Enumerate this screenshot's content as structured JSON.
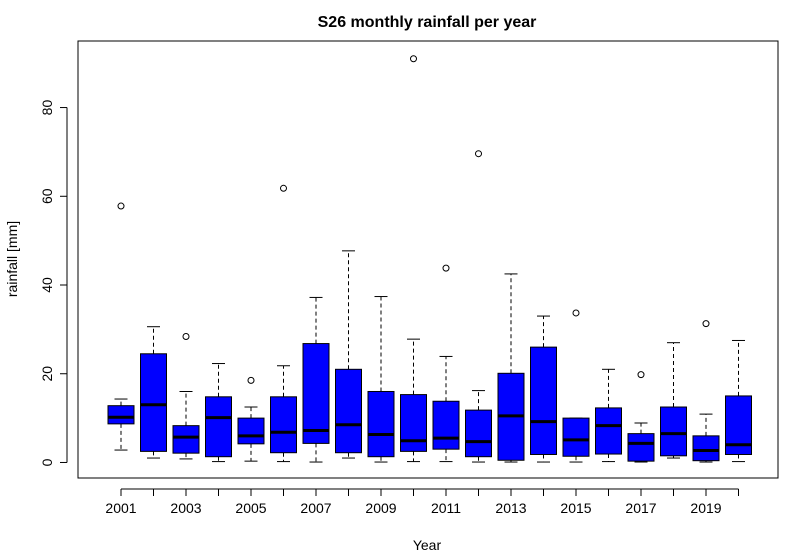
{
  "chart_data": {
    "type": "boxplot",
    "title": "S26 monthly rainfall per year",
    "xlabel": "Year",
    "ylabel": "rainfall [mm]",
    "ylim": [
      -3.5,
      95
    ],
    "y_ticks": [
      0,
      20,
      40,
      60,
      80
    ],
    "grid": false,
    "legend": "none",
    "box_color": "#0000ff",
    "categories": [
      "2001",
      "2002",
      "2003",
      "2004",
      "2005",
      "2006",
      "2007",
      "2008",
      "2009",
      "2010",
      "2011",
      "2012",
      "2013",
      "2014",
      "2015",
      "2016",
      "2017",
      "2018",
      "2019",
      "2020"
    ],
    "x_tick_labels": [
      "2001",
      "2003",
      "2005",
      "2007",
      "2009",
      "2011",
      "2013",
      "2015",
      "2017",
      "2019"
    ],
    "boxes": [
      {
        "year": "2001",
        "lower_whisker": 2.8,
        "q1": 8.7,
        "median": 10.2,
        "q3": 12.8,
        "upper_whisker": 14.3,
        "outliers": [
          57.8
        ]
      },
      {
        "year": "2002",
        "lower_whisker": 1.0,
        "q1": 2.5,
        "median": 13.0,
        "q3": 24.5,
        "upper_whisker": 30.6,
        "outliers": []
      },
      {
        "year": "2003",
        "lower_whisker": 0.8,
        "q1": 2.1,
        "median": 5.7,
        "q3": 8.3,
        "upper_whisker": 16.0,
        "outliers": [
          28.4
        ]
      },
      {
        "year": "2004",
        "lower_whisker": 0.2,
        "q1": 1.3,
        "median": 10.1,
        "q3": 14.8,
        "upper_whisker": 22.3,
        "outliers": []
      },
      {
        "year": "2005",
        "lower_whisker": 0.3,
        "q1": 4.2,
        "median": 6.0,
        "q3": 10.0,
        "upper_whisker": 12.5,
        "outliers": [
          18.5
        ]
      },
      {
        "year": "2006",
        "lower_whisker": 0.2,
        "q1": 2.2,
        "median": 6.8,
        "q3": 14.8,
        "upper_whisker": 21.8,
        "outliers": [
          61.8
        ]
      },
      {
        "year": "2007",
        "lower_whisker": 0.1,
        "q1": 4.3,
        "median": 7.2,
        "q3": 26.8,
        "upper_whisker": 37.2,
        "outliers": []
      },
      {
        "year": "2008",
        "lower_whisker": 1.0,
        "q1": 2.2,
        "median": 8.5,
        "q3": 21.0,
        "upper_whisker": 47.7,
        "outliers": []
      },
      {
        "year": "2009",
        "lower_whisker": 0.1,
        "q1": 1.3,
        "median": 6.3,
        "q3": 16.0,
        "upper_whisker": 37.4,
        "outliers": []
      },
      {
        "year": "2010",
        "lower_whisker": 0.2,
        "q1": 2.5,
        "median": 4.9,
        "q3": 15.3,
        "upper_whisker": 27.8,
        "outliers": [
          91.0
        ]
      },
      {
        "year": "2011",
        "lower_whisker": 0.2,
        "q1": 3.0,
        "median": 5.5,
        "q3": 13.8,
        "upper_whisker": 23.9,
        "outliers": [
          43.8
        ]
      },
      {
        "year": "2012",
        "lower_whisker": 0.1,
        "q1": 1.3,
        "median": 4.7,
        "q3": 11.8,
        "upper_whisker": 16.2,
        "outliers": [
          69.6
        ]
      },
      {
        "year": "2013",
        "lower_whisker": 0.1,
        "q1": 0.5,
        "median": 10.5,
        "q3": 20.1,
        "upper_whisker": 42.5,
        "outliers": []
      },
      {
        "year": "2014",
        "lower_whisker": 0.1,
        "q1": 1.8,
        "median": 9.2,
        "q3": 26.0,
        "upper_whisker": 33.0,
        "outliers": []
      },
      {
        "year": "2015",
        "lower_whisker": 0.1,
        "q1": 1.4,
        "median": 5.1,
        "q3": 10.0,
        "upper_whisker": 10.0,
        "outliers": [
          33.7
        ]
      },
      {
        "year": "2016",
        "lower_whisker": 0.2,
        "q1": 1.9,
        "median": 8.3,
        "q3": 12.3,
        "upper_whisker": 21.0,
        "outliers": []
      },
      {
        "year": "2017",
        "lower_whisker": 0.1,
        "q1": 0.3,
        "median": 4.3,
        "q3": 6.5,
        "upper_whisker": 8.9,
        "outliers": [
          19.8
        ]
      },
      {
        "year": "2018",
        "lower_whisker": 1.0,
        "q1": 1.5,
        "median": 6.5,
        "q3": 12.5,
        "upper_whisker": 27.0,
        "outliers": []
      },
      {
        "year": "2019",
        "lower_whisker": 0.1,
        "q1": 0.4,
        "median": 2.7,
        "q3": 6.0,
        "upper_whisker": 10.9,
        "outliers": [
          31.3
        ]
      },
      {
        "year": "2020",
        "lower_whisker": 0.2,
        "q1": 1.8,
        "median": 4.0,
        "q3": 15.0,
        "upper_whisker": 27.5,
        "outliers": []
      }
    ]
  }
}
